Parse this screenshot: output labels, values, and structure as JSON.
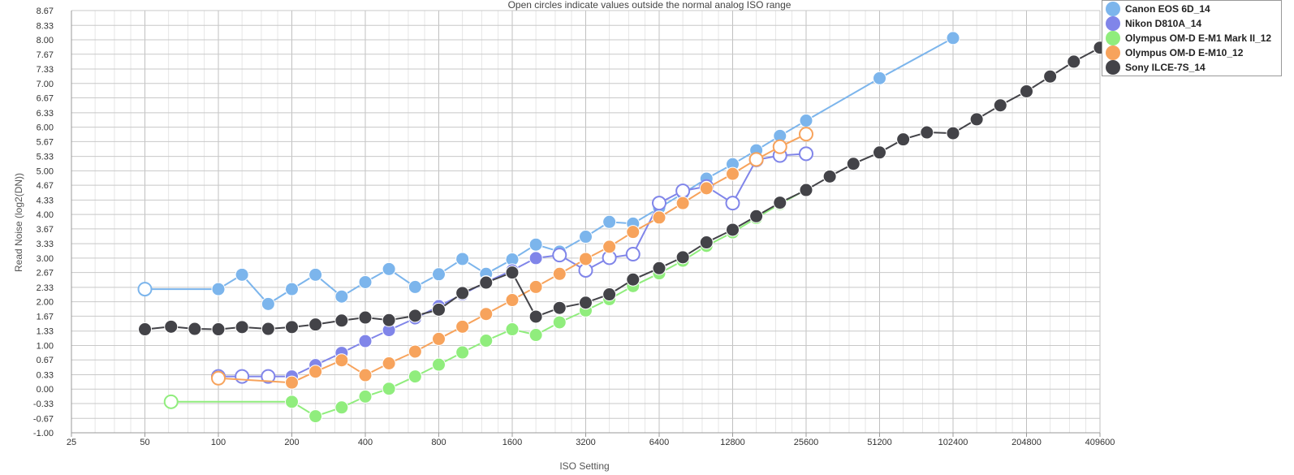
{
  "chart_data": {
    "type": "line",
    "title": "Open circles indicate values outside the normal analog ISO range",
    "xlabel": "ISO Setting",
    "ylabel": "Read Noise (log2(DN))",
    "x_scale": "log2",
    "xlim": [
      25,
      409600
    ],
    "ylim": [
      -1.0,
      8.67
    ],
    "x_ticks": [
      "25",
      "50",
      "100",
      "200",
      "400",
      "800",
      "1600",
      "3200",
      "6400",
      "12800",
      "25600",
      "51200",
      "102400",
      "204800",
      "409600"
    ],
    "y_ticks": [
      "8.67",
      "8.33",
      "8.00",
      "7.67",
      "7.33",
      "7.00",
      "6.67",
      "6.33",
      "6.00",
      "5.67",
      "5.33",
      "5.00",
      "4.67",
      "4.33",
      "4.00",
      "3.67",
      "3.33",
      "3.00",
      "2.67",
      "2.33",
      "2.00",
      "1.67",
      "1.33",
      "1.00",
      "0.67",
      "0.33",
      "0.00",
      "-0.33",
      "-0.67",
      "-1.00"
    ],
    "grid": true,
    "legend_position": "top-right",
    "series": [
      {
        "name": "Canon EOS 6D_14",
        "color": "#7cb5ec",
        "points": [
          {
            "iso": 50,
            "y": 2.29,
            "open": true
          },
          {
            "iso": 100,
            "y": 2.29,
            "open": false
          },
          {
            "iso": 125,
            "y": 2.62,
            "open": false
          },
          {
            "iso": 160,
            "y": 1.95,
            "open": false
          },
          {
            "iso": 200,
            "y": 2.29,
            "open": false
          },
          {
            "iso": 250,
            "y": 2.62,
            "open": false
          },
          {
            "iso": 320,
            "y": 2.12,
            "open": false
          },
          {
            "iso": 400,
            "y": 2.45,
            "open": false
          },
          {
            "iso": 500,
            "y": 2.75,
            "open": false
          },
          {
            "iso": 640,
            "y": 2.34,
            "open": false
          },
          {
            "iso": 800,
            "y": 2.63,
            "open": false
          },
          {
            "iso": 1000,
            "y": 2.98,
            "open": false
          },
          {
            "iso": 1250,
            "y": 2.64,
            "open": false
          },
          {
            "iso": 1600,
            "y": 2.97,
            "open": false
          },
          {
            "iso": 2000,
            "y": 3.31,
            "open": false
          },
          {
            "iso": 2500,
            "y": 3.15,
            "open": false
          },
          {
            "iso": 3200,
            "y": 3.49,
            "open": false
          },
          {
            "iso": 4000,
            "y": 3.83,
            "open": false
          },
          {
            "iso": 5000,
            "y": 3.79,
            "open": false
          },
          {
            "iso": 6400,
            "y": 4.15,
            "open": false
          },
          {
            "iso": 8000,
            "y": 4.48,
            "open": false
          },
          {
            "iso": 10000,
            "y": 4.82,
            "open": false
          },
          {
            "iso": 12800,
            "y": 5.15,
            "open": false
          },
          {
            "iso": 16000,
            "y": 5.47,
            "open": false
          },
          {
            "iso": 20000,
            "y": 5.8,
            "open": false
          },
          {
            "iso": 25600,
            "y": 6.15,
            "open": false
          },
          {
            "iso": 51200,
            "y": 7.12,
            "open": false
          },
          {
            "iso": 102400,
            "y": 8.04,
            "open": false
          }
        ]
      },
      {
        "name": "Nikon D810A_14",
        "color": "#8085e9",
        "points": [
          {
            "iso": 100,
            "y": 0.29,
            "open": true
          },
          {
            "iso": 125,
            "y": 0.29,
            "open": true
          },
          {
            "iso": 160,
            "y": 0.29,
            "open": true
          },
          {
            "iso": 200,
            "y": 0.29,
            "open": false
          },
          {
            "iso": 250,
            "y": 0.55,
            "open": false
          },
          {
            "iso": 320,
            "y": 0.83,
            "open": false
          },
          {
            "iso": 400,
            "y": 1.1,
            "open": false
          },
          {
            "iso": 500,
            "y": 1.35,
            "open": false
          },
          {
            "iso": 640,
            "y": 1.62,
            "open": false
          },
          {
            "iso": 800,
            "y": 1.9,
            "open": false
          },
          {
            "iso": 1000,
            "y": 2.17,
            "open": false
          },
          {
            "iso": 1250,
            "y": 2.45,
            "open": false
          },
          {
            "iso": 1600,
            "y": 2.72,
            "open": false
          },
          {
            "iso": 2000,
            "y": 3.0,
            "open": false
          },
          {
            "iso": 2500,
            "y": 3.07,
            "open": true
          },
          {
            "iso": 3200,
            "y": 2.72,
            "open": true
          },
          {
            "iso": 4000,
            "y": 3.01,
            "open": true
          },
          {
            "iso": 5000,
            "y": 3.09,
            "open": true
          },
          {
            "iso": 6400,
            "y": 4.26,
            "open": true
          },
          {
            "iso": 8000,
            "y": 4.54,
            "open": true
          },
          {
            "iso": 10000,
            "y": 4.64,
            "open": true
          },
          {
            "iso": 12800,
            "y": 4.26,
            "open": true
          },
          {
            "iso": 16000,
            "y": 5.25,
            "open": true
          },
          {
            "iso": 20000,
            "y": 5.35,
            "open": true
          },
          {
            "iso": 25600,
            "y": 5.39,
            "open": true
          }
        ]
      },
      {
        "name": "Olympus OM-D E-M1 Mark II_12",
        "color": "#90ed7d",
        "points": [
          {
            "iso": 64,
            "y": -0.29,
            "open": true
          },
          {
            "iso": 200,
            "y": -0.29,
            "open": false
          },
          {
            "iso": 250,
            "y": -0.62,
            "open": false
          },
          {
            "iso": 320,
            "y": -0.42,
            "open": false
          },
          {
            "iso": 400,
            "y": -0.17,
            "open": false
          },
          {
            "iso": 500,
            "y": 0.01,
            "open": false
          },
          {
            "iso": 640,
            "y": 0.29,
            "open": false
          },
          {
            "iso": 800,
            "y": 0.56,
            "open": false
          },
          {
            "iso": 1000,
            "y": 0.84,
            "open": false
          },
          {
            "iso": 1250,
            "y": 1.11,
            "open": false
          },
          {
            "iso": 1600,
            "y": 1.37,
            "open": false
          },
          {
            "iso": 2000,
            "y": 1.24,
            "open": false
          },
          {
            "iso": 2500,
            "y": 1.53,
            "open": false
          },
          {
            "iso": 3200,
            "y": 1.8,
            "open": false
          },
          {
            "iso": 4000,
            "y": 2.06,
            "open": false
          },
          {
            "iso": 5000,
            "y": 2.36,
            "open": false
          },
          {
            "iso": 6400,
            "y": 2.65,
            "open": false
          },
          {
            "iso": 8000,
            "y": 2.94,
            "open": false
          },
          {
            "iso": 10000,
            "y": 3.28,
            "open": false
          },
          {
            "iso": 12800,
            "y": 3.59,
            "open": false
          },
          {
            "iso": 16000,
            "y": 3.92,
            "open": false
          },
          {
            "iso": 20000,
            "y": 4.24,
            "open": false
          },
          {
            "iso": 25600,
            "y": 4.57,
            "open": false
          }
        ]
      },
      {
        "name": "Olympus OM-D E-M10_12",
        "color": "#f7a35c",
        "points": [
          {
            "iso": 100,
            "y": 0.25,
            "open": true
          },
          {
            "iso": 200,
            "y": 0.15,
            "open": false
          },
          {
            "iso": 250,
            "y": 0.4,
            "open": false
          },
          {
            "iso": 320,
            "y": 0.66,
            "open": false
          },
          {
            "iso": 400,
            "y": 0.32,
            "open": false
          },
          {
            "iso": 500,
            "y": 0.59,
            "open": false
          },
          {
            "iso": 640,
            "y": 0.86,
            "open": false
          },
          {
            "iso": 800,
            "y": 1.15,
            "open": false
          },
          {
            "iso": 1000,
            "y": 1.43,
            "open": false
          },
          {
            "iso": 1250,
            "y": 1.72,
            "open": false
          },
          {
            "iso": 1600,
            "y": 2.04,
            "open": false
          },
          {
            "iso": 2000,
            "y": 2.34,
            "open": false
          },
          {
            "iso": 2500,
            "y": 2.64,
            "open": false
          },
          {
            "iso": 3200,
            "y": 2.98,
            "open": false
          },
          {
            "iso": 4000,
            "y": 3.26,
            "open": false
          },
          {
            "iso": 5000,
            "y": 3.6,
            "open": false
          },
          {
            "iso": 6400,
            "y": 3.93,
            "open": false
          },
          {
            "iso": 8000,
            "y": 4.26,
            "open": false
          },
          {
            "iso": 10000,
            "y": 4.6,
            "open": false
          },
          {
            "iso": 12800,
            "y": 4.93,
            "open": false
          },
          {
            "iso": 16000,
            "y": 5.26,
            "open": true
          },
          {
            "iso": 20000,
            "y": 5.55,
            "open": true
          },
          {
            "iso": 25600,
            "y": 5.84,
            "open": true
          }
        ]
      },
      {
        "name": "Sony ILCE-7S_14",
        "color": "#434348",
        "points": [
          {
            "iso": 50,
            "y": 1.37,
            "open": false
          },
          {
            "iso": 64,
            "y": 1.43,
            "open": false
          },
          {
            "iso": 80,
            "y": 1.38,
            "open": false
          },
          {
            "iso": 100,
            "y": 1.37,
            "open": false
          },
          {
            "iso": 125,
            "y": 1.42,
            "open": false
          },
          {
            "iso": 160,
            "y": 1.38,
            "open": false
          },
          {
            "iso": 200,
            "y": 1.42,
            "open": false
          },
          {
            "iso": 250,
            "y": 1.48,
            "open": false
          },
          {
            "iso": 320,
            "y": 1.57,
            "open": false
          },
          {
            "iso": 400,
            "y": 1.64,
            "open": false
          },
          {
            "iso": 500,
            "y": 1.58,
            "open": false
          },
          {
            "iso": 640,
            "y": 1.68,
            "open": false
          },
          {
            "iso": 800,
            "y": 1.82,
            "open": false
          },
          {
            "iso": 1000,
            "y": 2.2,
            "open": false
          },
          {
            "iso": 1250,
            "y": 2.44,
            "open": false
          },
          {
            "iso": 1600,
            "y": 2.67,
            "open": false
          },
          {
            "iso": 2000,
            "y": 1.66,
            "open": false
          },
          {
            "iso": 2500,
            "y": 1.86,
            "open": false
          },
          {
            "iso": 3200,
            "y": 1.98,
            "open": false
          },
          {
            "iso": 4000,
            "y": 2.17,
            "open": false
          },
          {
            "iso": 5000,
            "y": 2.51,
            "open": false
          },
          {
            "iso": 6400,
            "y": 2.77,
            "open": false
          },
          {
            "iso": 8000,
            "y": 3.02,
            "open": false
          },
          {
            "iso": 10000,
            "y": 3.36,
            "open": false
          },
          {
            "iso": 12800,
            "y": 3.65,
            "open": false
          },
          {
            "iso": 16000,
            "y": 3.96,
            "open": false
          },
          {
            "iso": 20000,
            "y": 4.27,
            "open": false
          },
          {
            "iso": 25600,
            "y": 4.56,
            "open": false
          },
          {
            "iso": 32000,
            "y": 4.87,
            "open": false
          },
          {
            "iso": 40000,
            "y": 5.16,
            "open": false
          },
          {
            "iso": 51200,
            "y": 5.42,
            "open": false
          },
          {
            "iso": 64000,
            "y": 5.72,
            "open": false
          },
          {
            "iso": 80000,
            "y": 5.88,
            "open": false
          },
          {
            "iso": 102400,
            "y": 5.86,
            "open": false
          },
          {
            "iso": 128000,
            "y": 6.18,
            "open": false
          },
          {
            "iso": 160000,
            "y": 6.5,
            "open": false
          },
          {
            "iso": 204800,
            "y": 6.82,
            "open": false
          },
          {
            "iso": 256000,
            "y": 7.16,
            "open": false
          },
          {
            "iso": 320000,
            "y": 7.5,
            "open": false
          },
          {
            "iso": 409600,
            "y": 7.82,
            "open": false
          }
        ]
      }
    ]
  }
}
